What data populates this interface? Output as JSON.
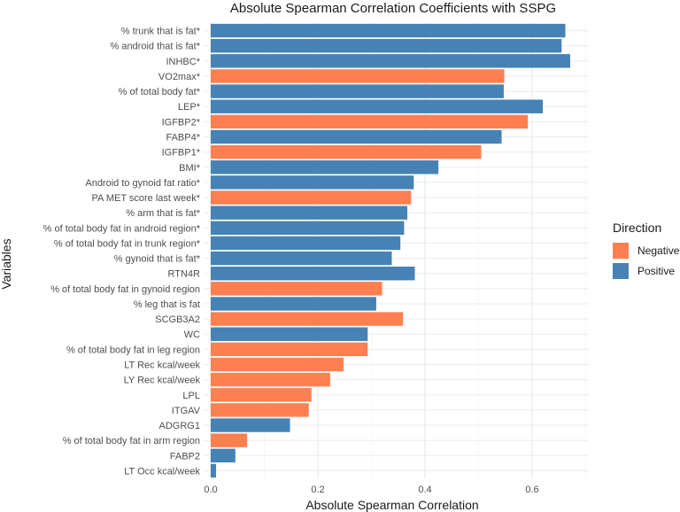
{
  "chart_data": {
    "type": "bar",
    "orientation": "horizontal",
    "title": "Absolute Spearman Correlation Coefficients with SSPG",
    "xlabel": "Absolute Spearman Correlation",
    "ylabel": "Variables",
    "xlim": [
      0,
      0.7
    ],
    "xticks": [
      "0.0",
      "0.2",
      "0.4",
      "0.6"
    ],
    "xtick_values": [
      0,
      0.2,
      0.4,
      0.6
    ],
    "grid": true,
    "legend": {
      "title": "Direction",
      "position": "right",
      "entries": [
        {
          "label": "Negative",
          "color": "#FF7F50"
        },
        {
          "label": "Positive",
          "color": "#4682B4"
        }
      ]
    },
    "bars": [
      {
        "label": "% trunk that is fat*",
        "value": 0.662,
        "direction": "Positive"
      },
      {
        "label": "% android that is fat*",
        "value": 0.655,
        "direction": "Positive"
      },
      {
        "label": "INHBC*",
        "value": 0.671,
        "direction": "Positive"
      },
      {
        "label": "VO2max*",
        "value": 0.548,
        "direction": "Negative"
      },
      {
        "label": "% of total body fat*",
        "value": 0.547,
        "direction": "Positive"
      },
      {
        "label": "LEP*",
        "value": 0.62,
        "direction": "Positive"
      },
      {
        "label": "IGFBP2*",
        "value": 0.592,
        "direction": "Negative"
      },
      {
        "label": "FABP4*",
        "value": 0.543,
        "direction": "Positive"
      },
      {
        "label": "IGFBP1*",
        "value": 0.505,
        "direction": "Negative"
      },
      {
        "label": "BMI*",
        "value": 0.425,
        "direction": "Positive"
      },
      {
        "label": "Android to gynoid fat ratio*",
        "value": 0.379,
        "direction": "Positive"
      },
      {
        "label": "PA MET score last week*",
        "value": 0.374,
        "direction": "Negative"
      },
      {
        "label": "% arm that is fat*",
        "value": 0.367,
        "direction": "Positive"
      },
      {
        "label": "% of total body fat in android region*",
        "value": 0.361,
        "direction": "Positive"
      },
      {
        "label": "% of total body fat in trunk region*",
        "value": 0.354,
        "direction": "Positive"
      },
      {
        "label": "% gynoid that is fat*",
        "value": 0.338,
        "direction": "Positive"
      },
      {
        "label": "RTN4R",
        "value": 0.381,
        "direction": "Positive"
      },
      {
        "label": "% of total body fat in gynoid region",
        "value": 0.32,
        "direction": "Negative"
      },
      {
        "label": "% leg that is fat",
        "value": 0.309,
        "direction": "Positive"
      },
      {
        "label": "SCGB3A2",
        "value": 0.359,
        "direction": "Negative"
      },
      {
        "label": "WC",
        "value": 0.293,
        "direction": "Positive"
      },
      {
        "label": "% of total body fat in leg region",
        "value": 0.293,
        "direction": "Negative"
      },
      {
        "label": "LT Rec kcal/week",
        "value": 0.248,
        "direction": "Negative"
      },
      {
        "label": "LY Rec kcal/week",
        "value": 0.223,
        "direction": "Negative"
      },
      {
        "label": "LPL",
        "value": 0.188,
        "direction": "Negative"
      },
      {
        "label": "ITGAV",
        "value": 0.183,
        "direction": "Negative"
      },
      {
        "label": "ADGRG1",
        "value": 0.148,
        "direction": "Positive"
      },
      {
        "label": "% of total body fat in arm region",
        "value": 0.068,
        "direction": "Negative"
      },
      {
        "label": "FABP2",
        "value": 0.046,
        "direction": "Positive"
      },
      {
        "label": "LT Occ kcal/week",
        "value": 0.01,
        "direction": "Positive"
      }
    ]
  }
}
